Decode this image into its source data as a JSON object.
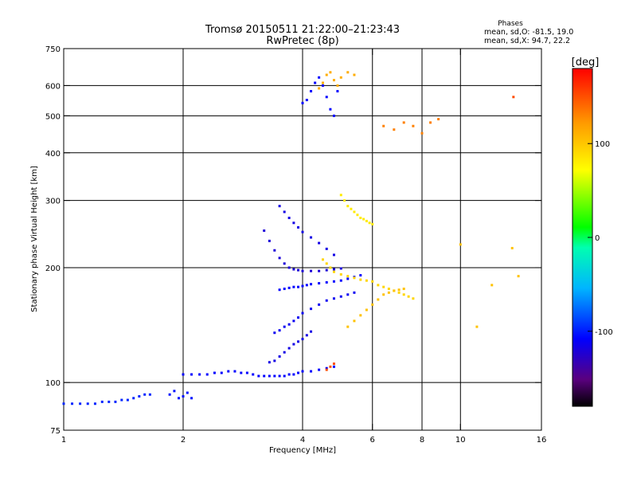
{
  "chart_data": {
    "type": "scatter",
    "title": "Tromsø 20150511 21:22:00–21:23:43",
    "subtitle": "RwPretec (8p)",
    "phase_stats": {
      "heading": "Phases",
      "line1": "mean, sd,O: -81.5, 19.0",
      "line2": "mean, sd,X:  94.7, 22.2"
    },
    "xlabel": "Frequency [MHz]",
    "ylabel": "Stationary phase Virtual Height [km]",
    "x_scale": "log",
    "y_scale": "log",
    "xlim": [
      1,
      16
    ],
    "ylim": [
      75,
      750
    ],
    "x_ticks": [
      1,
      2,
      4,
      6,
      8,
      10,
      16
    ],
    "x_tick_labels": [
      "1",
      "2",
      "4",
      "6",
      "8",
      "10",
      "16"
    ],
    "y_ticks": [
      75,
      100,
      200,
      300,
      400,
      500,
      600,
      750
    ],
    "y_tick_labels": [
      "75",
      "100",
      "200",
      "300",
      "400",
      "500",
      "600",
      "750"
    ],
    "grid_x": [
      2,
      4,
      6,
      8,
      10
    ],
    "grid_y": [
      100,
      200,
      300,
      400,
      500,
      600
    ],
    "colorbar": {
      "label": "[deg]",
      "range": [
        -180,
        180
      ],
      "ticks": [
        100,
        0,
        -100
      ],
      "tick_labels": [
        "100",
        "0",
        "-100"
      ],
      "colormap": "rainbow: black/purple (-180) → blue → cyan → green (0) → yellow → orange → red (180)"
    },
    "series": [
      {
        "mode": "O",
        "phase": -90,
        "x": [
          1.0,
          1.05,
          1.1,
          1.15,
          1.2,
          1.25,
          1.3,
          1.35,
          1.4,
          1.45,
          1.5,
          1.55,
          1.6,
          1.65
        ],
        "y": [
          88,
          88,
          88,
          88,
          88,
          89,
          89,
          89,
          90,
          90,
          91,
          92,
          93,
          93
        ]
      },
      {
        "mode": "O",
        "phase": -95,
        "x": [
          1.85,
          1.9,
          1.95,
          2.0,
          2.05,
          2.1
        ],
        "y": [
          93,
          95,
          91,
          92,
          94,
          91
        ]
      },
      {
        "mode": "O",
        "phase": -100,
        "x": [
          2.0,
          2.1,
          2.2,
          2.3,
          2.4,
          2.5,
          2.6,
          2.7,
          2.8,
          2.9,
          3.0,
          3.1,
          3.2,
          3.3,
          3.4,
          3.5,
          3.6,
          3.7,
          3.8,
          3.9,
          4.0,
          4.2,
          4.4,
          4.6,
          4.8
        ],
        "y": [
          105,
          105,
          105,
          105,
          106,
          106,
          107,
          107,
          106,
          106,
          105,
          104,
          104,
          104,
          104,
          104,
          104,
          105,
          105,
          106,
          107,
          107,
          108,
          109,
          110
        ]
      },
      {
        "mode": "O",
        "phase": -110,
        "x": [
          3.3,
          3.4,
          3.5,
          3.6,
          3.7,
          3.8,
          3.9,
          4.0,
          4.1,
          4.2
        ],
        "y": [
          113,
          114,
          117,
          120,
          123,
          126,
          128,
          130,
          133,
          136
        ]
      },
      {
        "mode": "O",
        "phase": -105,
        "x": [
          3.4,
          3.5,
          3.6,
          3.7,
          3.8,
          3.9,
          4.0,
          4.2,
          4.4,
          4.6,
          4.8,
          5.0,
          5.2,
          5.4
        ],
        "y": [
          135,
          137,
          140,
          142,
          145,
          148,
          152,
          156,
          160,
          164,
          166,
          168,
          170,
          172
        ]
      },
      {
        "mode": "O",
        "phase": -115,
        "x": [
          3.2,
          3.3,
          3.4,
          3.5,
          3.6,
          3.7,
          3.8,
          3.9,
          4.0,
          4.2,
          4.4,
          4.6,
          4.8,
          5.0
        ],
        "y": [
          250,
          235,
          222,
          212,
          205,
          200,
          198,
          197,
          196,
          196,
          196,
          197,
          198,
          199
        ]
      },
      {
        "mode": "O",
        "phase": -100,
        "x": [
          3.5,
          3.6,
          3.7,
          3.8,
          3.9,
          4.0,
          4.1,
          4.2,
          4.4,
          4.6,
          4.8,
          5.0,
          5.2,
          5.4,
          5.6
        ],
        "y": [
          175,
          176,
          177,
          178,
          178,
          179,
          180,
          181,
          182,
          183,
          184,
          185,
          187,
          189,
          191
        ]
      },
      {
        "mode": "O",
        "phase": -110,
        "x": [
          3.5,
          3.6,
          3.7,
          3.8,
          3.9,
          4.0,
          4.2,
          4.4,
          4.6,
          4.8
        ],
        "y": [
          290,
          280,
          270,
          262,
          255,
          248,
          240,
          232,
          224,
          216
        ]
      },
      {
        "mode": "O",
        "phase": -100,
        "x": [
          4.0,
          4.1,
          4.2,
          4.3,
          4.4,
          4.5,
          4.6,
          4.7,
          4.8,
          4.9
        ],
        "y": [
          540,
          550,
          580,
          610,
          630,
          600,
          560,
          520,
          500,
          580
        ]
      },
      {
        "mode": "X",
        "phase": 90,
        "x": [
          4.5,
          4.6,
          4.7,
          4.8,
          5.0,
          5.2,
          5.4,
          5.6,
          5.8,
          6.0,
          6.2,
          6.4,
          6.6,
          6.8,
          7.0,
          7.2,
          7.4,
          7.6
        ],
        "y": [
          210,
          205,
          200,
          195,
          192,
          190,
          188,
          186,
          185,
          184,
          180,
          178,
          176,
          174,
          172,
          170,
          168,
          166
        ]
      },
      {
        "mode": "X",
        "phase": 100,
        "x": [
          5.2,
          5.4,
          5.6,
          5.8,
          6.0,
          6.2,
          6.4,
          6.6,
          6.8,
          7.0,
          7.2
        ],
        "y": [
          140,
          145,
          150,
          155,
          160,
          165,
          170,
          172,
          174,
          175,
          176
        ]
      },
      {
        "mode": "X",
        "phase": 80,
        "x": [
          5.0,
          5.1,
          5.2,
          5.3,
          5.4,
          5.5,
          5.6,
          5.7,
          5.8,
          5.9,
          6.0
        ],
        "y": [
          310,
          300,
          290,
          285,
          280,
          275,
          270,
          268,
          265,
          262,
          260
        ]
      },
      {
        "mode": "X",
        "phase": 110,
        "x": [
          4.4,
          4.5,
          4.6,
          4.7,
          4.8,
          4.9,
          5.0,
          5.2,
          5.4
        ],
        "y": [
          590,
          610,
          640,
          650,
          620,
          600,
          630,
          650,
          640
        ]
      },
      {
        "mode": "X",
        "phase": 130,
        "x": [
          6.4,
          6.8,
          7.2,
          7.6,
          8.0,
          8.4,
          8.8
        ],
        "y": [
          470,
          460,
          480,
          470,
          450,
          480,
          490
        ]
      },
      {
        "mode": "X",
        "phase": 150,
        "x": [
          4.6,
          4.7,
          4.8
        ],
        "y": [
          108,
          110,
          112
        ]
      },
      {
        "mode": "X",
        "phase": 100,
        "x": [
          10.0,
          11.0,
          12.0,
          13.5,
          14.0
        ],
        "y": [
          230,
          140,
          180,
          225,
          190
        ]
      },
      {
        "mode": "X",
        "phase": 150,
        "x": [
          13.6
        ],
        "y": [
          560
        ]
      }
    ]
  }
}
